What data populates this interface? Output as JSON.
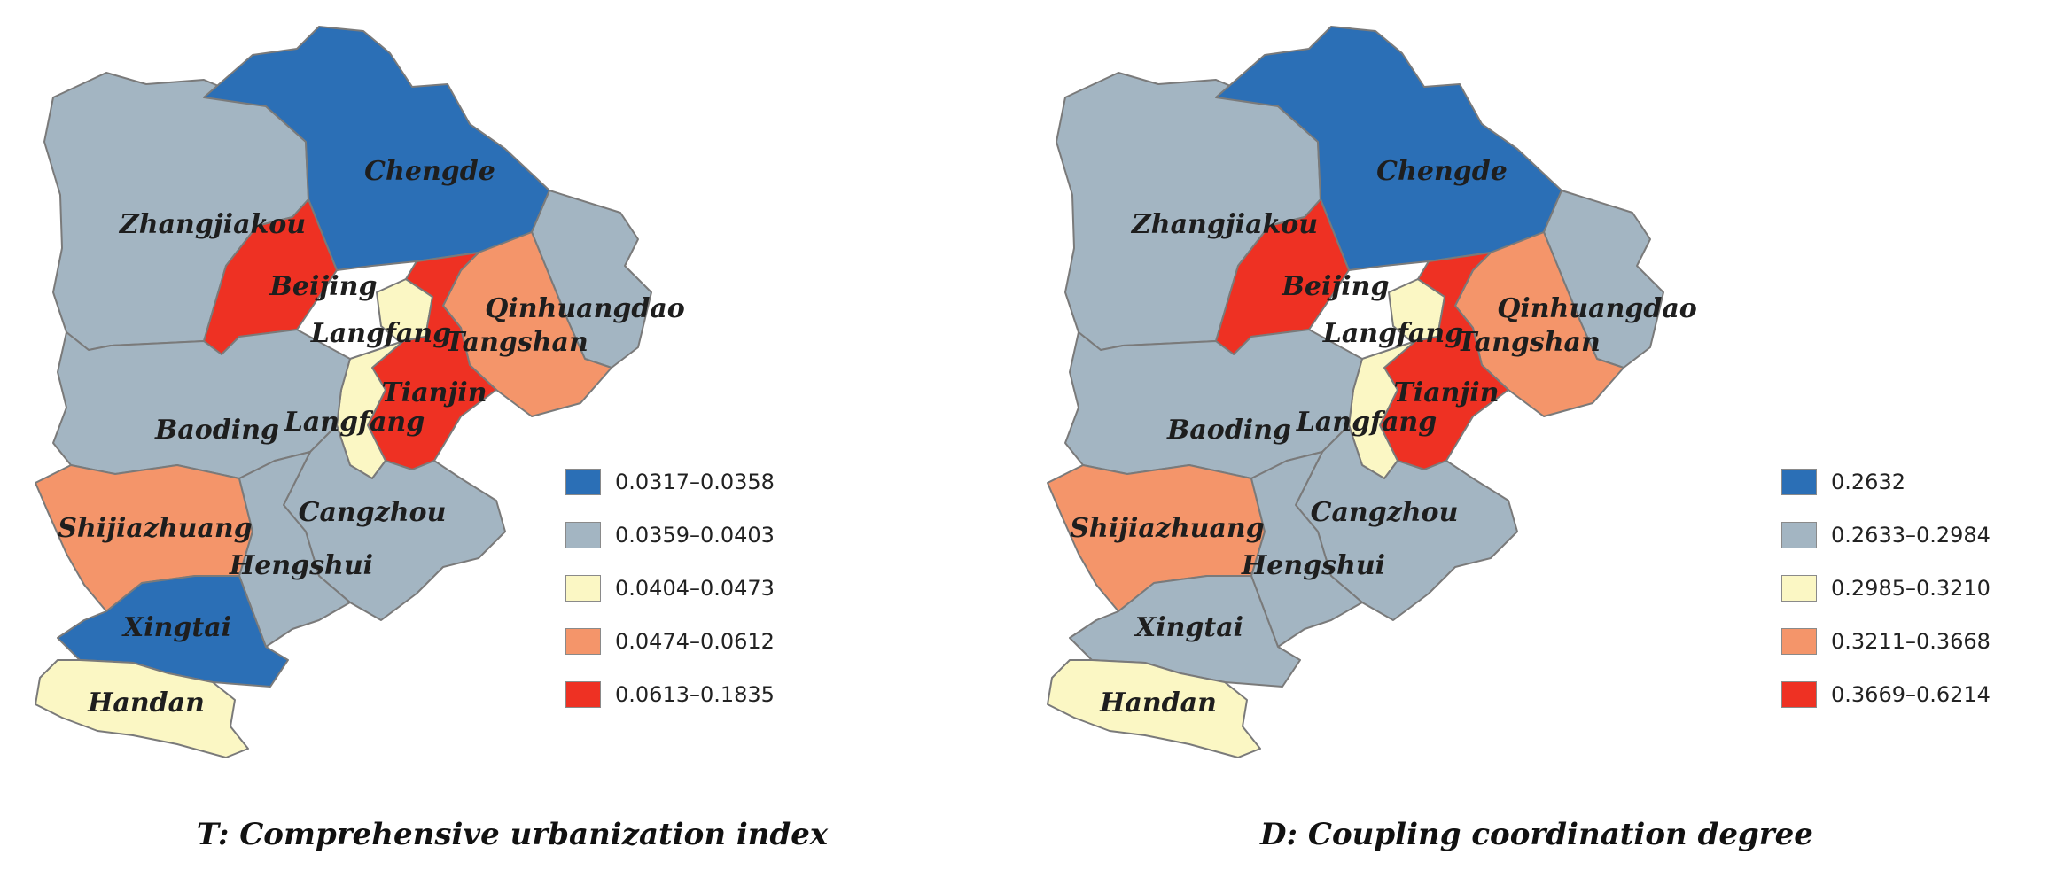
{
  "colors": {
    "blue": "#2b6fb6",
    "grey": "#a3b5c2",
    "yellow": "#fbf7c4",
    "orange": "#f4956a",
    "red": "#ee3123"
  },
  "panels": [
    {
      "caption": "T: Comprehensive urbanization index",
      "legend": [
        {
          "label": "0.0317–0.0358",
          "color": "#2b6fb6"
        },
        {
          "label": "0.0359–0.0403",
          "color": "#a3b5c2"
        },
        {
          "label": "0.0404–0.0473",
          "color": "#fbf7c4"
        },
        {
          "label": "0.0474–0.0612",
          "color": "#f4956a"
        },
        {
          "label": "0.0613–0.1835",
          "color": "#ee3123"
        }
      ],
      "regions": {
        "zhangjiakou": {
          "name": "Zhangjiakou",
          "class": "0.0359–0.0403",
          "fill": "#a3b5c2"
        },
        "chengde": {
          "name": "Chengde",
          "class": "0.0317–0.0358",
          "fill": "#2b6fb6"
        },
        "beijing": {
          "name": "Beijing",
          "class": "0.0613–0.1835",
          "fill": "#ee3123"
        },
        "tianjin": {
          "name": "Tianjin",
          "class": "0.0613–0.1835",
          "fill": "#ee3123"
        },
        "langfang_north": {
          "name": "Langfang",
          "class": "0.0404–0.0473",
          "fill": "#fbf7c4"
        },
        "langfang_south": {
          "name": "Langfang",
          "class": "0.0404–0.0473",
          "fill": "#fbf7c4"
        },
        "qinhuangdao": {
          "name": "Qinhuangdao",
          "class": "0.0359–0.0403",
          "fill": "#a3b5c2"
        },
        "tangshan": {
          "name": "Tangshan",
          "class": "0.0474–0.0612",
          "fill": "#f4956a"
        },
        "baoding": {
          "name": "Baoding",
          "class": "0.0359–0.0403",
          "fill": "#a3b5c2"
        },
        "cangzhou": {
          "name": "Cangzhou",
          "class": "0.0359–0.0403",
          "fill": "#a3b5c2"
        },
        "shijiazhuang": {
          "name": "Shijiazhuang",
          "class": "0.0474–0.0612",
          "fill": "#f4956a"
        },
        "hengshui": {
          "name": "Hengshui",
          "class": "0.0359–0.0403",
          "fill": "#a3b5c2"
        },
        "xingtai": {
          "name": "Xingtai",
          "class": "0.0317–0.0358",
          "fill": "#2b6fb6"
        },
        "handan": {
          "name": "Handan",
          "class": "0.0404–0.0473",
          "fill": "#fbf7c4"
        }
      }
    },
    {
      "caption": "D: Coupling coordination degree",
      "legend": [
        {
          "label": "0.2632",
          "color": "#2b6fb6"
        },
        {
          "label": "0.2633–0.2984",
          "color": "#a3b5c2"
        },
        {
          "label": "0.2985–0.3210",
          "color": "#fbf7c4"
        },
        {
          "label": "0.3211–0.3668",
          "color": "#f4956a"
        },
        {
          "label": "0.3669–0.6214",
          "color": "#ee3123"
        }
      ],
      "regions": {
        "zhangjiakou": {
          "name": "Zhangjiakou",
          "class": "0.2633–0.2984",
          "fill": "#a3b5c2"
        },
        "chengde": {
          "name": "Chengde",
          "class": "0.2632",
          "fill": "#2b6fb6"
        },
        "beijing": {
          "name": "Beijing",
          "class": "0.3669–0.6214",
          "fill": "#ee3123"
        },
        "tianjin": {
          "name": "Tianjin",
          "class": "0.3669–0.6214",
          "fill": "#ee3123"
        },
        "langfang_north": {
          "name": "Langfang",
          "class": "0.2985–0.3210",
          "fill": "#fbf7c4"
        },
        "langfang_south": {
          "name": "Langfang",
          "class": "0.2985–0.3210",
          "fill": "#fbf7c4"
        },
        "qinhuangdao": {
          "name": "Qinhuangdao",
          "class": "0.2633–0.2984",
          "fill": "#a3b5c2"
        },
        "tangshan": {
          "name": "Tangshan",
          "class": "0.3211–0.3668",
          "fill": "#f4956a"
        },
        "baoding": {
          "name": "Baoding",
          "class": "0.2633–0.2984",
          "fill": "#a3b5c2"
        },
        "cangzhou": {
          "name": "Cangzhou",
          "class": "0.2633–0.2984",
          "fill": "#a3b5c2"
        },
        "shijiazhuang": {
          "name": "Shijiazhuang",
          "class": "0.3211–0.3668",
          "fill": "#f4956a"
        },
        "hengshui": {
          "name": "Hengshui",
          "class": "0.2633–0.2984",
          "fill": "#a3b5c2"
        },
        "xingtai": {
          "name": "Xingtai",
          "class": "0.2633–0.2984",
          "fill": "#a3b5c2"
        },
        "handan": {
          "name": "Handan",
          "class": "0.2985–0.3210",
          "fill": "#fbf7c4"
        }
      }
    }
  ]
}
